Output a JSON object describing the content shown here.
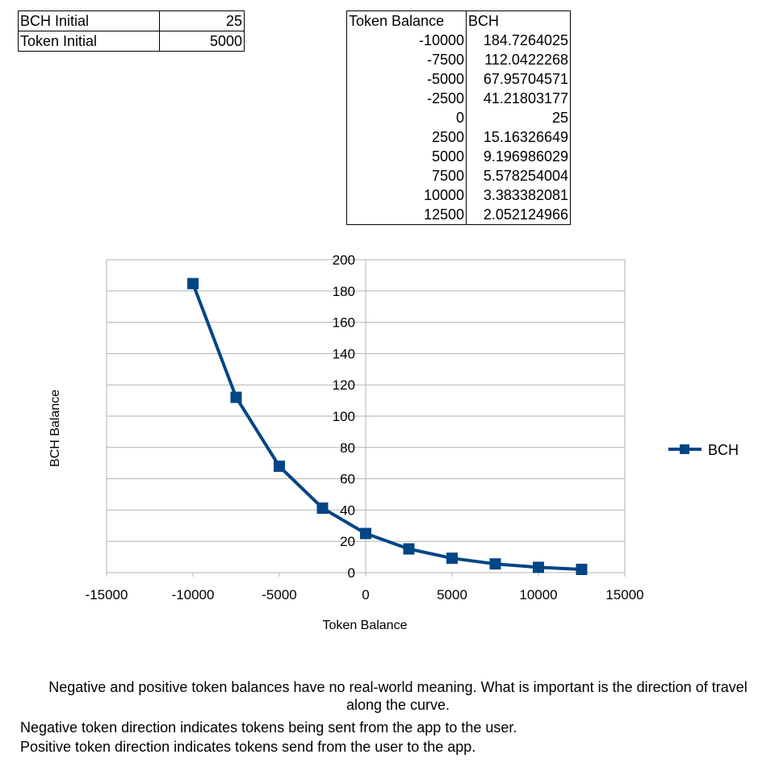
{
  "params": [
    {
      "label": "BCH Initial",
      "value": "25"
    },
    {
      "label": "Token Initial",
      "value": "5000"
    }
  ],
  "table": {
    "headers": [
      "Token Balance",
      "BCH"
    ],
    "rows": [
      [
        "-10000",
        "184.7264025"
      ],
      [
        "-7500",
        "112.0422268"
      ],
      [
        "-5000",
        "67.95704571"
      ],
      [
        "-2500",
        "41.21803177"
      ],
      [
        "0",
        "25"
      ],
      [
        "2500",
        "15.16326649"
      ],
      [
        "5000",
        "9.196986029"
      ],
      [
        "7500",
        "5.578254004"
      ],
      [
        "10000",
        "3.383382081"
      ],
      [
        "12500",
        "2.052124966"
      ]
    ]
  },
  "chart_data": {
    "type": "line",
    "title": "",
    "xlabel": "Token Balance",
    "ylabel": "BCH Balance",
    "xlim": [
      -15000,
      15000
    ],
    "ylim": [
      0,
      200
    ],
    "xticks": [
      -15000,
      -10000,
      -5000,
      0,
      5000,
      10000,
      15000
    ],
    "yticks": [
      0,
      20,
      40,
      60,
      80,
      100,
      120,
      140,
      160,
      180,
      200
    ],
    "grid": true,
    "legend_position": "right",
    "series": [
      {
        "name": "BCH",
        "color": "#004586",
        "marker": "square",
        "x": [
          -10000,
          -7500,
          -5000,
          -2500,
          0,
          2500,
          5000,
          7500,
          10000,
          12500
        ],
        "y": [
          184.7264025,
          112.0422268,
          67.95704571,
          41.21803177,
          25,
          15.16326649,
          9.196986029,
          5.578254004,
          3.383382081,
          2.052124966
        ]
      }
    ]
  },
  "notes": {
    "line1": "Negative and positive token balances have no real-world meaning. What is important is the direction of travel along the curve.",
    "line2": "Negative token direction indicates tokens being sent from the app to the user.",
    "line3": "Positive token direction indicates tokens send from the user to the app."
  }
}
